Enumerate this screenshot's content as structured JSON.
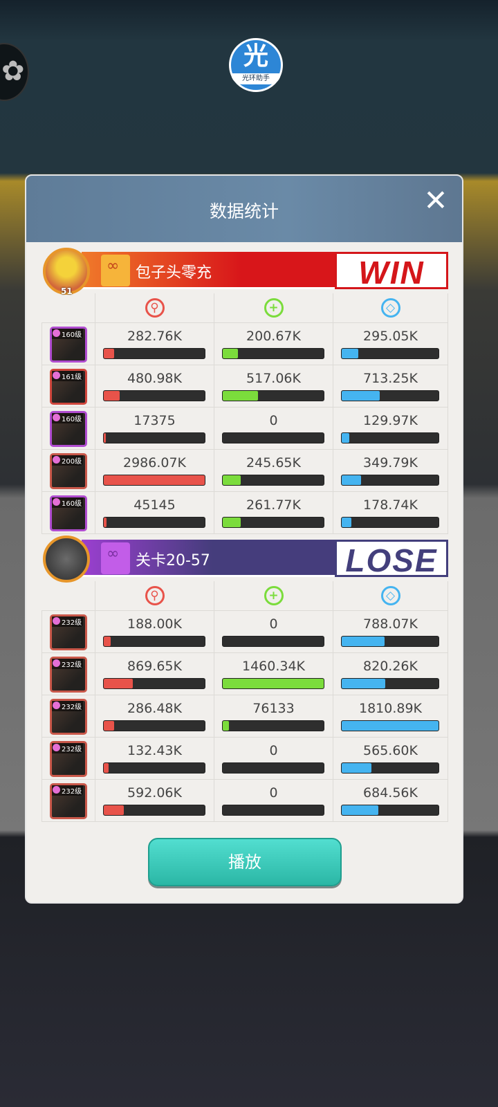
{
  "overlay": {
    "logo_char": "光",
    "logo_text": "光环助手"
  },
  "modal": {
    "title": "数据统计",
    "close_icon": "close-icon",
    "play_label": "播放"
  },
  "colors": {
    "damage": "#e8534a",
    "heal": "#7bdc3c",
    "shield": "#45b4f0",
    "win_red": "#d4161a",
    "lose_purple": "#433f7c"
  },
  "stat_icons": [
    "damage-sword-icon",
    "heal-plus-icon",
    "shield-icon"
  ],
  "teams": [
    {
      "name": "包子头零充",
      "result": "WIN",
      "avatar_level": "51",
      "heroes": [
        {
          "level": "160级",
          "damage": "282.76K",
          "heal": "200.67K",
          "shield": "295.05K",
          "damage_pct": 0.1,
          "heal_pct": 0.15,
          "shield_pct": 0.17,
          "frame": "#b04cd0"
        },
        {
          "level": "161级",
          "damage": "480.98K",
          "heal": "517.06K",
          "shield": "713.25K",
          "damage_pct": 0.16,
          "heal_pct": 0.35,
          "shield_pct": 0.39,
          "frame": "#d0473d"
        },
        {
          "level": "160级",
          "damage": "17375",
          "heal": "0",
          "shield": "129.97K",
          "damage_pct": 0.02,
          "heal_pct": 0,
          "shield_pct": 0.08,
          "frame": "#b04cd0"
        },
        {
          "level": "200级",
          "damage": "2986.07K",
          "heal": "245.65K",
          "shield": "349.79K",
          "damage_pct": 1.0,
          "heal_pct": 0.18,
          "shield_pct": 0.2,
          "frame": "#c9584a"
        },
        {
          "level": "160级",
          "damage": "45145",
          "heal": "261.77K",
          "shield": "178.74K",
          "damage_pct": 0.03,
          "heal_pct": 0.18,
          "shield_pct": 0.1,
          "frame": "#b04cd0"
        }
      ]
    },
    {
      "name": "关卡20-57",
      "result": "LOSE",
      "avatar_level": "",
      "heroes": [
        {
          "level": "232级",
          "damage": "188.00K",
          "heal": "0",
          "shield": "788.07K",
          "damage_pct": 0.07,
          "heal_pct": 0,
          "shield_pct": 0.44,
          "frame": "#c9584a"
        },
        {
          "level": "232级",
          "damage": "869.65K",
          "heal": "1460.34K",
          "shield": "820.26K",
          "damage_pct": 0.29,
          "heal_pct": 1.0,
          "shield_pct": 0.45,
          "frame": "#c9584a"
        },
        {
          "level": "232级",
          "damage": "286.48K",
          "heal": "76133",
          "shield": "1810.89K",
          "damage_pct": 0.1,
          "heal_pct": 0.06,
          "shield_pct": 1.0,
          "frame": "#c9584a"
        },
        {
          "level": "232级",
          "damage": "132.43K",
          "heal": "0",
          "shield": "565.60K",
          "damage_pct": 0.05,
          "heal_pct": 0,
          "shield_pct": 0.31,
          "frame": "#c9584a"
        },
        {
          "level": "232级",
          "damage": "592.06K",
          "heal": "0",
          "shield": "684.56K",
          "damage_pct": 0.2,
          "heal_pct": 0,
          "shield_pct": 0.38,
          "frame": "#c9584a"
        }
      ]
    }
  ]
}
